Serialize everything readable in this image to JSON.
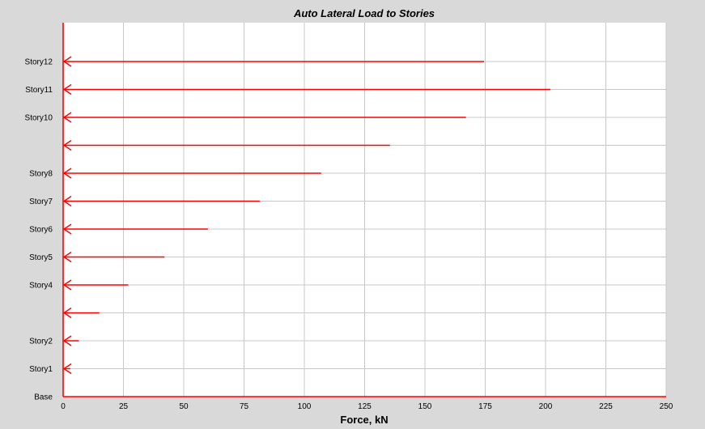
{
  "chart_data": {
    "type": "bar",
    "orientation": "horizontal",
    "title": "Auto Lateral Load to Stories",
    "xlabel": "Force, kN",
    "ylabel": "",
    "xlim": [
      0,
      250
    ],
    "xticks": [
      0,
      25,
      50,
      75,
      100,
      125,
      150,
      175,
      200,
      225,
      250
    ],
    "grid": true,
    "colors": {
      "bars": "#ff0000",
      "background": "#d9d9d9",
      "plot": "#ffffff",
      "grid": "#c8c8c8"
    },
    "levels": [
      {
        "label": "Base",
        "value": null
      },
      {
        "label": "Story1",
        "value": 3
      },
      {
        "label": "Story2",
        "value": 6.5
      },
      {
        "label": "",
        "value": 15
      },
      {
        "label": "Story4",
        "value": 27
      },
      {
        "label": "Story5",
        "value": 42
      },
      {
        "label": "Story6",
        "value": 60
      },
      {
        "label": "Story7",
        "value": 81.5
      },
      {
        "label": "Story8",
        "value": 107
      },
      {
        "label": "",
        "value": 135.5
      },
      {
        "label": "Story10",
        "value": 167
      },
      {
        "label": "Story11",
        "value": 202
      },
      {
        "label": "Story12",
        "value": 174.5
      }
    ]
  }
}
